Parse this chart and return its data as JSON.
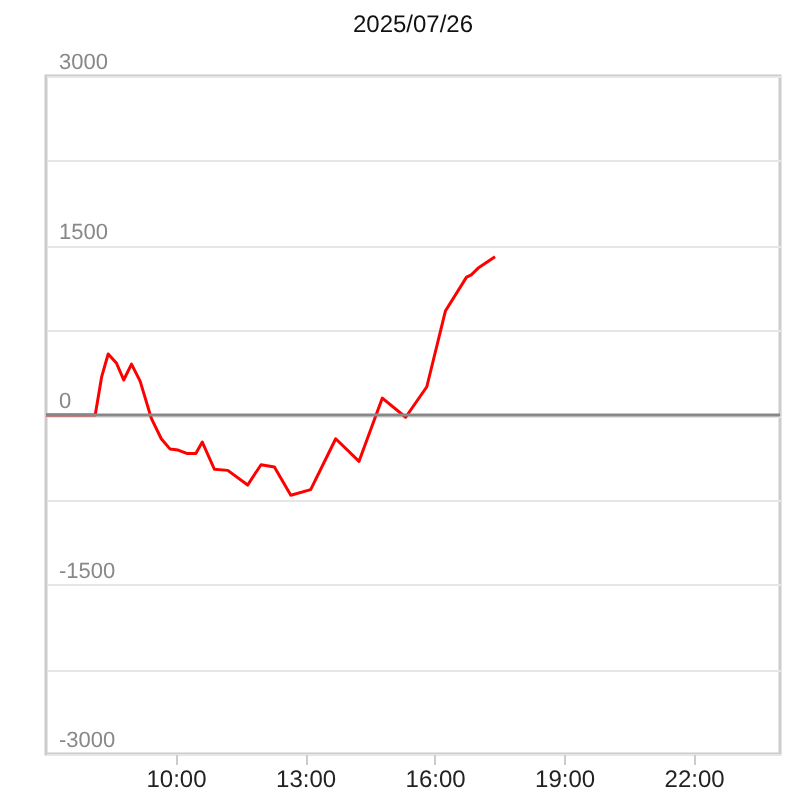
{
  "chart_data": {
    "type": "line",
    "title": "2025/07/26",
    "x": [
      7,
      8.14,
      8.29,
      8.44,
      8.63,
      8.8,
      8.98,
      9.18,
      9.44,
      9.67,
      9.87,
      10.06,
      10.26,
      10.47,
      10.62,
      10.9,
      11.21,
      11.67,
      11.98,
      12.29,
      12.67,
      13.13,
      13.71,
      14.25,
      14.79,
      15.33,
      15.82,
      16.25,
      16.74,
      16.85,
      17.01,
      17.4
    ],
    "series": [
      {
        "color": "#ff0000",
        "values": [
          0,
          0,
          340,
          540,
          460,
          310,
          450,
          300,
          -30,
          -210,
          -300,
          -310,
          -340,
          -340,
          -240,
          -480,
          -490,
          -620,
          -440,
          -460,
          -710,
          -660,
          -210,
          -410,
          150,
          -20,
          250,
          920,
          1220,
          1240,
          1300,
          1400
        ]
      }
    ],
    "xlim": [
      7,
      24
    ],
    "xticks": [
      {
        "value": 10,
        "label": "10:00"
      },
      {
        "value": 13,
        "label": "13:00"
      },
      {
        "value": 16,
        "label": "16:00"
      },
      {
        "value": 19,
        "label": "19:00"
      },
      {
        "value": 22,
        "label": "22:00"
      }
    ],
    "ylim": [
      -3000,
      3000
    ],
    "yticks": [
      -3000,
      {
        "value": -2250,
        "label": null
      },
      -1500,
      {
        "value": -750,
        "label": null
      },
      0,
      {
        "value": 750,
        "label": null
      },
      1500,
      {
        "value": 2250,
        "label": null
      },
      3000
    ],
    "grid": "y",
    "marker": "none",
    "line_style": "solid",
    "ref_lines": [
      {
        "axis": "y",
        "value": 0,
        "color": "#888888"
      }
    ]
  }
}
